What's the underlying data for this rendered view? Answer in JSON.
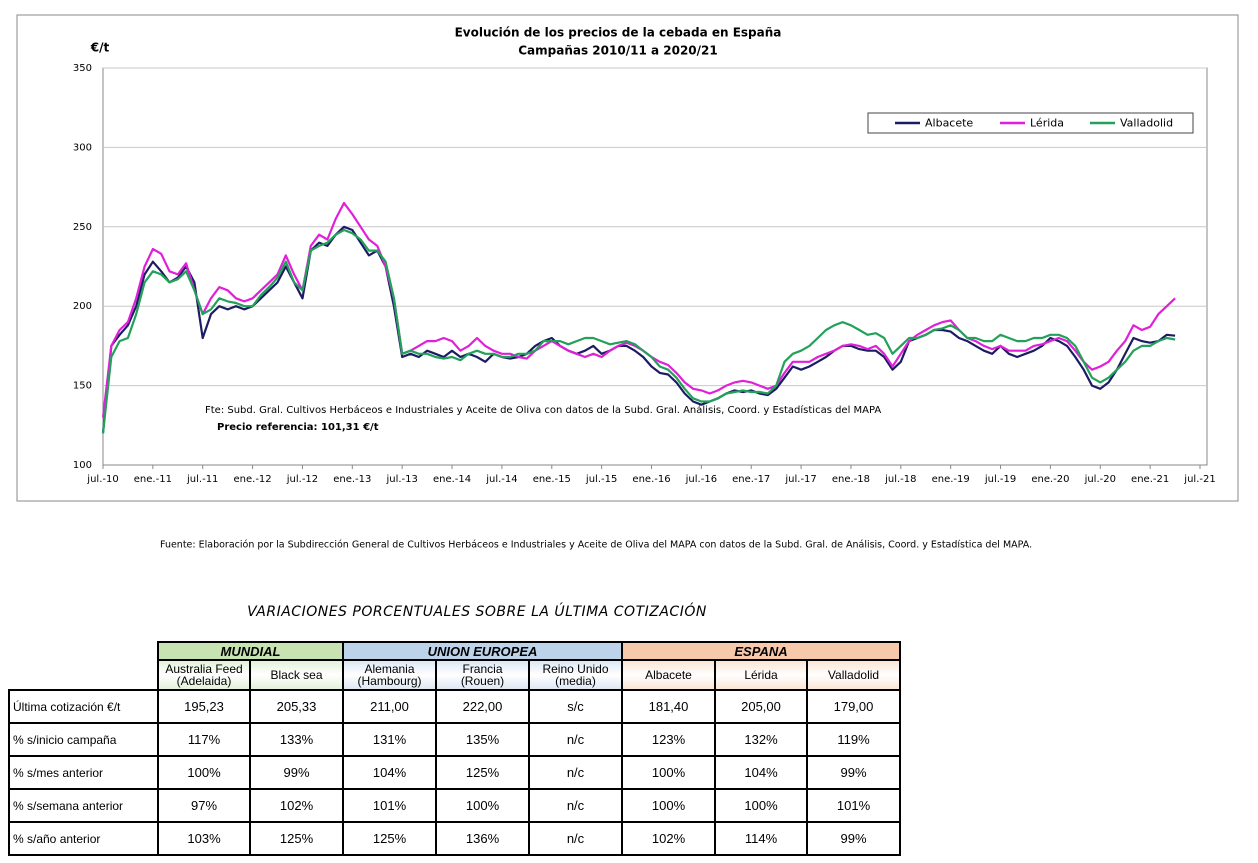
{
  "chart_data": {
    "type": "line",
    "title": "Evolución de los precios de la cebada en España",
    "subtitle": "Campañas 2010/11 a 2020/21",
    "y_label": "€/t",
    "source_note": "Fte: Subd. Gral. Cultivos Herbáceos e Industriales y Aceite de Oliva con datos de la Subd. Gral. Análisis, Coord. y Estadísticas del MAPA",
    "reference_price": "Precio referencia: 101,31 €/t",
    "legend": "upper right",
    "grid": true,
    "ylim": [
      100,
      350
    ],
    "yticks": [
      100,
      150,
      200,
      250,
      300,
      350
    ],
    "xlim": [
      "2010-07",
      "2021-07"
    ],
    "xticks": [
      {
        "value": "2010-07",
        "label": "jul.-10"
      },
      {
        "value": "2011-01",
        "label": "ene.-11"
      },
      {
        "value": "2011-07",
        "label": "jul.-11"
      },
      {
        "value": "2012-01",
        "label": "ene.-12"
      },
      {
        "value": "2012-07",
        "label": "jul.-12"
      },
      {
        "value": "2013-01",
        "label": "ene.-13"
      },
      {
        "value": "2013-07",
        "label": "jul.-13"
      },
      {
        "value": "2014-01",
        "label": "ene.-14"
      },
      {
        "value": "2014-07",
        "label": "jul.-14"
      },
      {
        "value": "2015-01",
        "label": "ene.-15"
      },
      {
        "value": "2015-07",
        "label": "jul.-15"
      },
      {
        "value": "2016-01",
        "label": "ene.-16"
      },
      {
        "value": "2016-07",
        "label": "jul.-16"
      },
      {
        "value": "2017-01",
        "label": "ene.-17"
      },
      {
        "value": "2017-07",
        "label": "jul.-17"
      },
      {
        "value": "2018-01",
        "label": "ene.-18"
      },
      {
        "value": "2018-07",
        "label": "jul.-18"
      },
      {
        "value": "2019-01",
        "label": "ene.-19"
      },
      {
        "value": "2019-07",
        "label": "jul.-19"
      },
      {
        "value": "2020-01",
        "label": "ene.-20"
      },
      {
        "value": "2020-07",
        "label": "jul.-20"
      },
      {
        "value": "2021-01",
        "label": "ene.-21"
      },
      {
        "value": "2021-07",
        "label": "jul.-21"
      }
    ],
    "x": [
      "2010-07",
      "2010-08",
      "2010-09",
      "2010-10",
      "2010-11",
      "2010-12",
      "2011-01",
      "2011-02",
      "2011-03",
      "2011-04",
      "2011-05",
      "2011-06",
      "2011-07",
      "2011-08",
      "2011-09",
      "2011-10",
      "2011-11",
      "2011-12",
      "2012-01",
      "2012-02",
      "2012-03",
      "2012-04",
      "2012-05",
      "2012-06",
      "2012-07",
      "2012-08",
      "2012-09",
      "2012-10",
      "2012-11",
      "2012-12",
      "2013-01",
      "2013-02",
      "2013-03",
      "2013-04",
      "2013-05",
      "2013-06",
      "2013-07",
      "2013-08",
      "2013-09",
      "2013-10",
      "2013-11",
      "2013-12",
      "2014-01",
      "2014-02",
      "2014-03",
      "2014-04",
      "2014-05",
      "2014-06",
      "2014-07",
      "2014-08",
      "2014-09",
      "2014-10",
      "2014-11",
      "2014-12",
      "2015-01",
      "2015-02",
      "2015-03",
      "2015-04",
      "2015-05",
      "2015-06",
      "2015-07",
      "2015-08",
      "2015-09",
      "2015-10",
      "2015-11",
      "2015-12",
      "2016-01",
      "2016-02",
      "2016-03",
      "2016-04",
      "2016-05",
      "2016-06",
      "2016-07",
      "2016-08",
      "2016-09",
      "2016-10",
      "2016-11",
      "2016-12",
      "2017-01",
      "2017-02",
      "2017-03",
      "2017-04",
      "2017-05",
      "2017-06",
      "2017-07",
      "2017-08",
      "2017-09",
      "2017-10",
      "2017-11",
      "2017-12",
      "2018-01",
      "2018-02",
      "2018-03",
      "2018-04",
      "2018-05",
      "2018-06",
      "2018-07",
      "2018-08",
      "2018-09",
      "2018-10",
      "2018-11",
      "2018-12",
      "2019-01",
      "2019-02",
      "2019-03",
      "2019-04",
      "2019-05",
      "2019-06",
      "2019-07",
      "2019-08",
      "2019-09",
      "2019-10",
      "2019-11",
      "2019-12",
      "2020-01",
      "2020-02",
      "2020-03",
      "2020-04",
      "2020-05",
      "2020-06",
      "2020-07",
      "2020-08",
      "2020-09",
      "2020-10",
      "2020-11",
      "2020-12",
      "2021-01",
      "2021-02",
      "2021-03",
      "2021-04"
    ],
    "series": [
      {
        "name": "Albacete",
        "color": "#1c1c63",
        "values": [
          120,
          175,
          182,
          188,
          200,
          220,
          228,
          222,
          215,
          218,
          225,
          215,
          180,
          195,
          200,
          198,
          200,
          198,
          200,
          205,
          210,
          215,
          225,
          215,
          205,
          235,
          240,
          238,
          245,
          250,
          248,
          240,
          232,
          235,
          225,
          200,
          168,
          170,
          168,
          172,
          170,
          168,
          172,
          168,
          170,
          168,
          165,
          170,
          168,
          167,
          168,
          170,
          175,
          178,
          180,
          175,
          172,
          170,
          172,
          175,
          170,
          172,
          175,
          175,
          172,
          168,
          162,
          158,
          157,
          152,
          145,
          140,
          138,
          140,
          142,
          145,
          147,
          146,
          147,
          145,
          144,
          148,
          155,
          162,
          160,
          162,
          165,
          168,
          172,
          175,
          175,
          173,
          172,
          172,
          168,
          160,
          165,
          178,
          180,
          182,
          185,
          185,
          184,
          180,
          178,
          175,
          172,
          170,
          175,
          170,
          168,
          170,
          172,
          175,
          180,
          178,
          175,
          168,
          160,
          150,
          148,
          152,
          160,
          170,
          180,
          178,
          177,
          178,
          182,
          181.4
        ]
      },
      {
        "name": "Lérida",
        "color": "#e020d8",
        "values": [
          130,
          175,
          185,
          190,
          205,
          225,
          236,
          233,
          222,
          220,
          227,
          210,
          195,
          205,
          212,
          210,
          205,
          203,
          205,
          210,
          215,
          220,
          232,
          220,
          210,
          238,
          245,
          242,
          255,
          265,
          258,
          250,
          242,
          238,
          225,
          205,
          170,
          172,
          175,
          178,
          178,
          180,
          178,
          172,
          175,
          180,
          175,
          172,
          170,
          170,
          168,
          167,
          172,
          175,
          178,
          175,
          172,
          170,
          168,
          170,
          168,
          172,
          175,
          177,
          175,
          172,
          168,
          165,
          163,
          158,
          152,
          148,
          147,
          145,
          147,
          150,
          152,
          153,
          152,
          150,
          148,
          150,
          158,
          165,
          165,
          165,
          168,
          170,
          172,
          175,
          176,
          175,
          173,
          175,
          170,
          162,
          170,
          178,
          182,
          185,
          188,
          190,
          191,
          185,
          180,
          178,
          175,
          173,
          175,
          172,
          172,
          172,
          175,
          176,
          178,
          180,
          178,
          172,
          165,
          160,
          162,
          165,
          172,
          178,
          188,
          185,
          187,
          195,
          200,
          205
        ]
      },
      {
        "name": "Valladolid",
        "color": "#23a05a",
        "values": [
          120,
          168,
          178,
          180,
          195,
          215,
          222,
          220,
          215,
          217,
          222,
          210,
          195,
          198,
          205,
          203,
          202,
          200,
          200,
          207,
          212,
          218,
          228,
          215,
          210,
          235,
          238,
          240,
          245,
          248,
          246,
          242,
          235,
          235,
          228,
          205,
          170,
          172,
          170,
          170,
          168,
          167,
          168,
          166,
          170,
          172,
          170,
          170,
          168,
          168,
          170,
          170,
          172,
          178,
          178,
          178,
          176,
          178,
          180,
          180,
          178,
          176,
          177,
          178,
          176,
          172,
          168,
          162,
          160,
          155,
          148,
          142,
          140,
          140,
          142,
          145,
          146,
          147,
          146,
          146,
          145,
          150,
          165,
          170,
          172,
          175,
          180,
          185,
          188,
          190,
          188,
          185,
          182,
          183,
          180,
          170,
          175,
          180,
          180,
          182,
          185,
          186,
          188,
          185,
          180,
          180,
          178,
          178,
          182,
          180,
          178,
          178,
          180,
          180,
          182,
          182,
          180,
          175,
          165,
          155,
          152,
          155,
          160,
          165,
          172,
          175,
          175,
          178,
          180,
          179
        ]
      }
    ],
    "footnote": "Fuente: Elaboración por la Subdirección General de Cultivos Herbáceos e Industriales y Aceite de Oliva del MAPA con datos de la Subd. Gral. de Análisis, Coord. y Estadística del MAPA."
  },
  "table": {
    "title": "VARIACIONES PORCENTUALES SOBRE LA ÚLTIMA COTIZACIÓN",
    "groups": [
      {
        "label": "MUNDIAL",
        "columns": [
          [
            "Australia Feed",
            "(Adelaida)"
          ],
          [
            "Black sea"
          ]
        ]
      },
      {
        "label": "UNION EUROPEA",
        "columns": [
          [
            "Alemania",
            "(Hambourg)"
          ],
          [
            "Francia",
            "(Rouen)"
          ],
          [
            "Reino Unido",
            "(media)"
          ]
        ]
      },
      {
        "label": "ESPANA",
        "columns": [
          [
            "Albacete"
          ],
          [
            "Lérida"
          ],
          [
            "Valladolid"
          ]
        ]
      }
    ],
    "rows": [
      {
        "label": "Última cotización €/t",
        "cells": [
          "195,23",
          "205,33",
          "211,00",
          "222,00",
          "s/c",
          "181,40",
          "205,00",
          "179,00"
        ]
      },
      {
        "label": "% s/inicio campaña",
        "cells": [
          "117%",
          "133%",
          "131%",
          "135%",
          "n/c",
          "123%",
          "132%",
          "119%"
        ]
      },
      {
        "label": "% s/mes anterior",
        "cells": [
          "100%",
          "99%",
          "104%",
          "125%",
          "n/c",
          "100%",
          "104%",
          "99%"
        ]
      },
      {
        "label": "% s/semana anterior",
        "cells": [
          "97%",
          "102%",
          "101%",
          "100%",
          "n/c",
          "100%",
          "100%",
          "101%"
        ]
      },
      {
        "label": "% s/año anterior",
        "cells": [
          "103%",
          "125%",
          "125%",
          "136%",
          "n/c",
          "102%",
          "114%",
          "99%"
        ]
      }
    ]
  }
}
